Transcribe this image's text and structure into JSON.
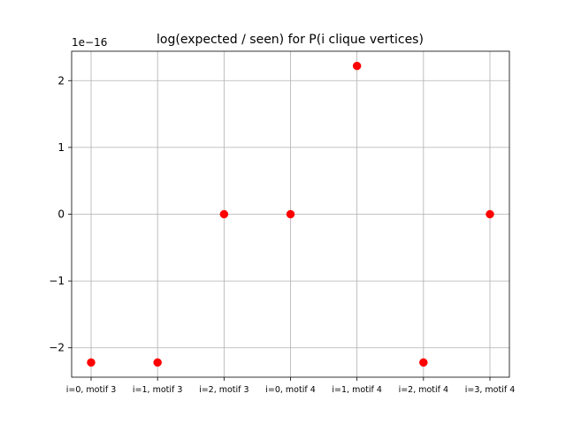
{
  "chart_data": {
    "type": "scatter",
    "title": "log(expected / seen) for P(i clique vertices)",
    "xlabel": "",
    "ylabel": "",
    "y_offset_label": "1e−16",
    "y_scale": 1e-16,
    "categories": [
      "i=0, motif 3",
      "i=1, motif 3",
      "i=2, motif 3",
      "i=0, motif 4",
      "i=1, motif 4",
      "i=2, motif 4",
      "i=3, motif 4"
    ],
    "values": [
      -2.22e-16,
      -2.22e-16,
      0,
      0,
      2.22e-16,
      -2.22e-16,
      0
    ],
    "ylim": [
      -2.44e-16,
      2.44e-16
    ],
    "yticks": [
      -2e-16,
      -1e-16,
      0,
      1e-16,
      2e-16
    ],
    "ytick_labels": [
      "−2",
      "−1",
      "0",
      "1",
      "2"
    ],
    "grid": true,
    "marker_color": "#ff0000",
    "grid_color": "#b0b0b0",
    "axis_color": "#000000"
  }
}
